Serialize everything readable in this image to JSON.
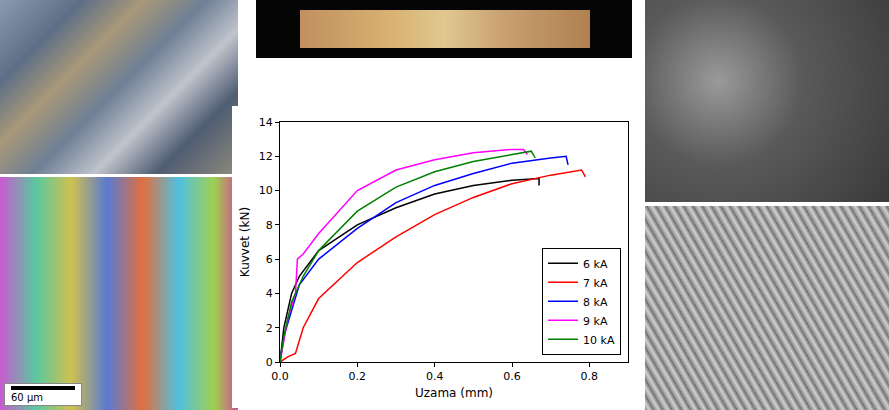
{
  "chart_data": {
    "type": "line",
    "x_label": "Uzama (mm)",
    "y_label": "Kuvvet (kN)",
    "xlim": [
      0,
      0.9
    ],
    "xticks": [
      {
        "value": 0,
        "label": "0.0"
      },
      0.2,
      0.4,
      0.6,
      0.8
    ],
    "ylim": [
      0,
      14
    ],
    "yticks": [
      0,
      2,
      4,
      6,
      8,
      10,
      12,
      14
    ],
    "grid": false,
    "legend": "lower right",
    "series": [
      {
        "name": "6 kA",
        "color": "#000000",
        "x": [
          0,
          0.01,
          0.03,
          0.05,
          0.1,
          0.2,
          0.3,
          0.4,
          0.5,
          0.6,
          0.67,
          0.67
        ],
        "values": [
          0,
          2,
          4,
          5,
          6.5,
          8,
          9,
          9.8,
          10.3,
          10.6,
          10.7,
          10.3
        ]
      },
      {
        "name": "7 kA",
        "color": "#ff0000",
        "x": [
          0,
          0.02,
          0.04,
          0.06,
          0.1,
          0.2,
          0.3,
          0.4,
          0.5,
          0.6,
          0.7,
          0.78,
          0.79
        ],
        "values": [
          0,
          0.3,
          0.5,
          2,
          3.7,
          5.8,
          7.3,
          8.6,
          9.6,
          10.4,
          10.9,
          11.2,
          10.8
        ]
      },
      {
        "name": "8 kA",
        "color": "#0000ff",
        "x": [
          0,
          0.01,
          0.03,
          0.05,
          0.1,
          0.2,
          0.3,
          0.4,
          0.5,
          0.6,
          0.7,
          0.74,
          0.745
        ],
        "values": [
          0,
          1.5,
          3,
          4.5,
          6,
          7.8,
          9.3,
          10.3,
          11,
          11.6,
          11.9,
          12.0,
          11.5
        ]
      },
      {
        "name": "9 kA",
        "color": "#ff00ff",
        "x": [
          0,
          0.02,
          0.04,
          0.045,
          0.06,
          0.1,
          0.2,
          0.3,
          0.4,
          0.5,
          0.6,
          0.63,
          0.64
        ],
        "values": [
          0,
          2.5,
          4,
          6,
          6.3,
          7.5,
          10,
          11.2,
          11.8,
          12.2,
          12.4,
          12.4,
          12.1
        ]
      },
      {
        "name": "10 kA",
        "color": "#008000",
        "x": [
          0,
          0.01,
          0.03,
          0.06,
          0.1,
          0.2,
          0.3,
          0.4,
          0.5,
          0.6,
          0.65,
          0.66
        ],
        "values": [
          0,
          1.5,
          3.5,
          5,
          6.5,
          8.8,
          10.2,
          11.1,
          11.7,
          12.1,
          12.3,
          11.9
        ]
      }
    ]
  },
  "image_panels": {
    "scale_bar": "60 µm"
  }
}
